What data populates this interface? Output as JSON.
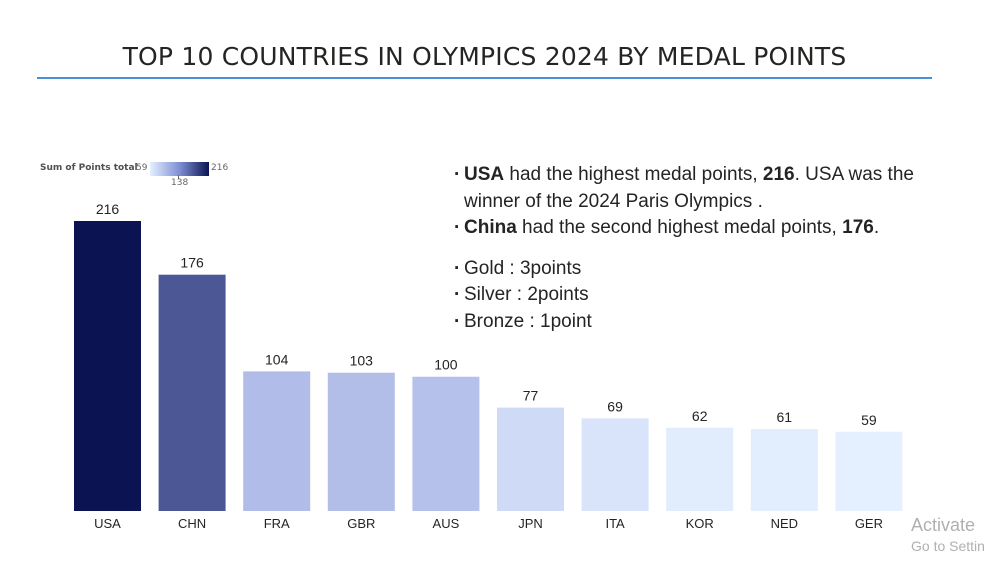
{
  "title": "TOP 10 COUNTRIES IN OLYMPICS 2024 BY MEDAL POINTS",
  "legend": {
    "label": "Sum of Points total",
    "min": "59",
    "mid": "138",
    "max": "216"
  },
  "notes": {
    "line1": {
      "bold1": "USA",
      "text1": " had the highest medal points, ",
      "bold2": "216",
      "text2": ". USA was the winner of the 2024 Paris Olympics ."
    },
    "line2": {
      "bold1": "China",
      "text1": " had the second highest medal points, ",
      "bold2": "176",
      "text2": "."
    },
    "gold": "Gold : 3points",
    "silver": "Silver : 2points",
    "bronze": "Bronze : 1point"
  },
  "watermark": {
    "line1": "Activate",
    "line2": "Go to Settin"
  },
  "chart_data": {
    "type": "bar",
    "title": "TOP 10 COUNTRIES IN OLYMPICS 2024 BY MEDAL POINTS",
    "categories": [
      "USA",
      "CHN",
      "FRA",
      "GBR",
      "AUS",
      "JPN",
      "ITA",
      "KOR",
      "NED",
      "GER"
    ],
    "values": [
      216,
      176,
      104,
      103,
      100,
      77,
      69,
      62,
      61,
      59
    ],
    "xlabel": "",
    "ylabel": "",
    "ylim": [
      0,
      216
    ],
    "grid": false,
    "color_scale": {
      "min": 59,
      "mid": 138,
      "max": 216,
      "colors": [
        "#e4efff",
        "#8a97d6",
        "#0b1352"
      ]
    }
  }
}
